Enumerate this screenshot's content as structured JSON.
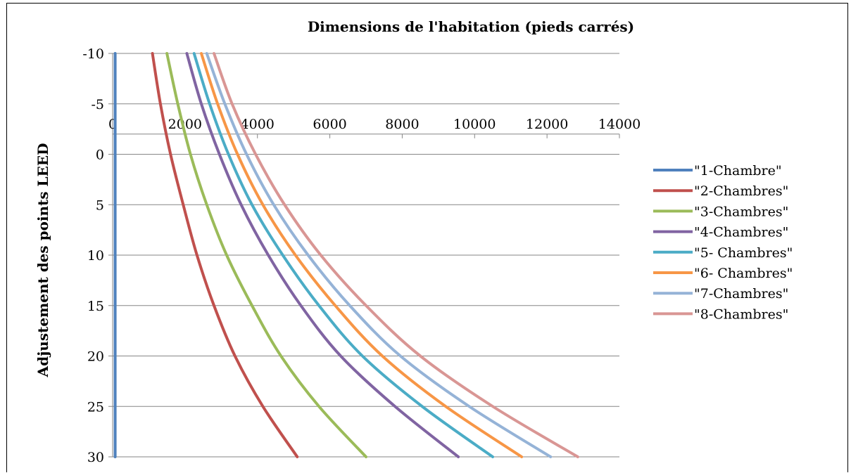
{
  "chart_data": {
    "type": "line",
    "title": "Dimensions de l'habitation (pieds carrés)",
    "xlabel": "",
    "ylabel": "Adjustement des points LEED",
    "xlim": [
      0,
      14000
    ],
    "ylim": [
      -10,
      30
    ],
    "y_reversed": true,
    "x_axis_position": "top (crosses at y = -2)",
    "x_ticks": [
      0,
      2000,
      4000,
      6000,
      8000,
      10000,
      12000,
      14000
    ],
    "y_ticks": [
      -10,
      -5,
      0,
      5,
      10,
      15,
      20,
      25,
      30
    ],
    "grid": "horizontal",
    "legend_position": "right",
    "y": [
      -10,
      -5,
      0,
      5,
      10,
      15,
      20,
      25,
      30
    ],
    "series": [
      {
        "name": "\"1-Chambre\"",
        "color": "#4f81bd",
        "x": [
          70,
          70,
          70,
          70,
          70,
          70,
          70,
          70,
          70
        ]
      },
      {
        "name": "\"2-Chambres\"",
        "color": "#c0504d",
        "x": [
          1100,
          1320,
          1600,
          1950,
          2330,
          2800,
          3380,
          4150,
          5100
        ]
      },
      {
        "name": "\"3-Chambres\"",
        "color": "#9bbb59",
        "x": [
          1500,
          1800,
          2150,
          2600,
          3150,
          3850,
          4650,
          5700,
          7000
        ]
      },
      {
        "name": "\"4-Chambres\"",
        "color": "#8064a2",
        "x": [
          2050,
          2450,
          2950,
          3550,
          4300,
          5200,
          6300,
          7800,
          9550
        ]
      },
      {
        "name": "\"5- Chambres\"",
        "color": "#4bacc6",
        "x": [
          2250,
          2680,
          3200,
          3850,
          4700,
          5700,
          6900,
          8550,
          10500
        ]
      },
      {
        "name": "\"6- Chambres\"",
        "color": "#f79646",
        "x": [
          2450,
          2900,
          3450,
          4150,
          5050,
          6150,
          7450,
          9200,
          11300
        ]
      },
      {
        "name": "\"7-Chambres\"",
        "color": "#95b3d7",
        "x": [
          2600,
          3100,
          3700,
          4450,
          5400,
          6550,
          7950,
          9850,
          12100
        ]
      },
      {
        "name": "\"8-Chambres\"",
        "color": "#d99694",
        "x": [
          2800,
          3300,
          3950,
          4750,
          5750,
          7000,
          8500,
          10500,
          12850
        ]
      }
    ]
  }
}
